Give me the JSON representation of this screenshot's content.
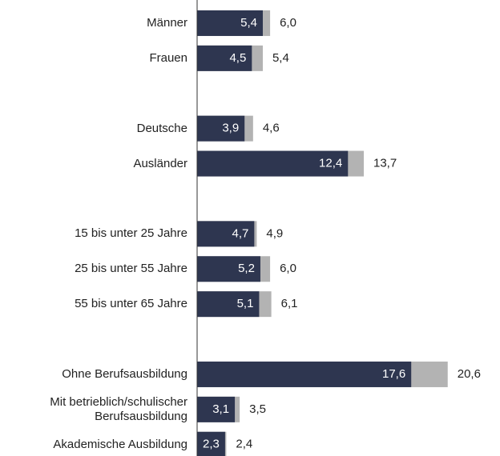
{
  "chart_data": {
    "type": "bar",
    "orientation": "horizontal",
    "overlap": true,
    "categories": [
      "Männer",
      "Frauen",
      null,
      "Deutsche",
      "Ausländer",
      null,
      "15 bis unter 25 Jahre",
      "25 bis unter 55 Jahre",
      "55 bis unter 65 Jahre",
      null,
      "Ohne Berufsausbildung",
      "Mit betrieblich/schulischer Berufsausbildung",
      "Akademische Ausbildung"
    ],
    "series": [
      {
        "color": "#b3b3b3",
        "values": [
          6.0,
          5.4,
          null,
          4.6,
          13.7,
          null,
          4.9,
          6.0,
          6.1,
          null,
          20.6,
          3.5,
          2.4
        ],
        "value_labels": [
          "6,0",
          "5,4",
          null,
          "4,6",
          "13,7",
          null,
          "4,9",
          "6,0",
          "6,1",
          null,
          "20,6",
          "3,5",
          "2,4"
        ]
      },
      {
        "color": "#2e3650",
        "values": [
          5.4,
          4.5,
          null,
          3.9,
          12.4,
          null,
          4.7,
          5.2,
          5.1,
          null,
          17.6,
          3.1,
          2.3
        ],
        "value_labels": [
          "5,4",
          "4,5",
          null,
          "3,9",
          "12,4",
          null,
          "4,7",
          "5,2",
          "5,1",
          null,
          "17,6",
          "3,1",
          "2,3"
        ]
      }
    ],
    "xlim": [
      0,
      24.7
    ]
  }
}
